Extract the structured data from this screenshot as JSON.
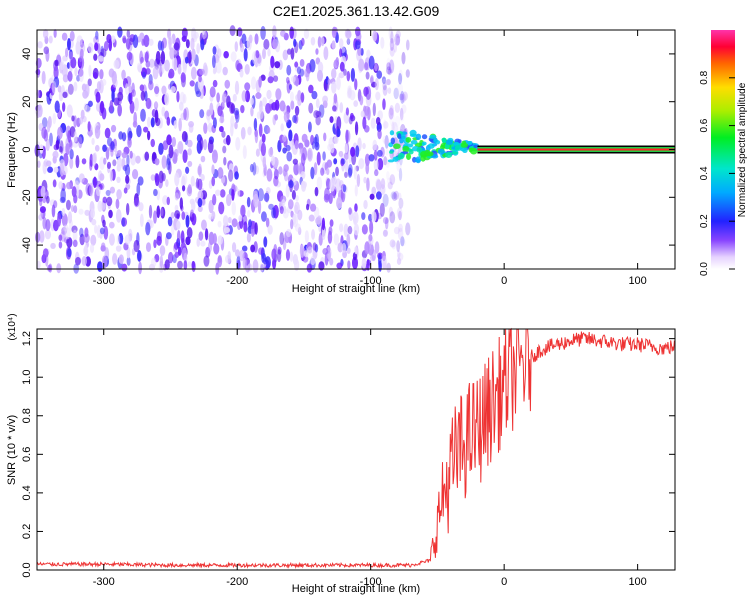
{
  "chart_data": [
    {
      "type": "heatmap",
      "title": "C2E1.2025.361.13.42.G09",
      "xlabel": "Height of straight line (km)",
      "ylabel": "Frequency (Hz)",
      "xlim": [
        -350,
        128
      ],
      "ylim": [
        -50,
        50
      ],
      "xticks": [
        -300,
        -200,
        -100,
        0,
        100
      ],
      "yticks": [
        -40,
        -20,
        0,
        20,
        40
      ],
      "colorbar": {
        "label": "Normalized spectral amplitude",
        "range": [
          0,
          1
        ],
        "ticks": [
          "0.0",
          "0.2",
          "0.4",
          "0.6",
          "0.8"
        ],
        "tick_values": [
          0.0,
          0.2,
          0.4,
          0.6,
          0.8
        ]
      },
      "regions": [
        {
          "name": "noise",
          "x_range": [
            -350,
            -72
          ],
          "f_range": [
            -50,
            50
          ],
          "amplitude": [
            0.05,
            0.25
          ]
        },
        {
          "name": "transition",
          "x_range": [
            -85,
            -20
          ],
          "f_range": [
            -3,
            6
          ],
          "amplitude": [
            0.3,
            0.6
          ]
        },
        {
          "name": "carrier",
          "x_range": [
            -20,
            128
          ],
          "f_center": 0,
          "amplitude": 0.85
        }
      ]
    },
    {
      "type": "line",
      "xlabel": "Height of straight line (km)",
      "ylabel": "SNR (10 * v/v)",
      "multiplier_label": "(x10⁴)",
      "xlim": [
        -350,
        128
      ],
      "ylim": [
        0,
        1.25
      ],
      "xticks": [
        -300,
        -200,
        -100,
        0,
        100
      ],
      "yticks": [
        0.0,
        0.2,
        0.4,
        0.6,
        0.8,
        1.0,
        1.2
      ],
      "ytick_labels": [
        "0.0",
        "0.2",
        "0.4",
        "0.6",
        "0.8",
        "1.0",
        "1.2"
      ],
      "color": "#ee3333",
      "series": [
        {
          "name": "SNR",
          "x": [
            -350,
            -300,
            -250,
            -200,
            -150,
            -100,
            -70,
            -55,
            -50,
            -45,
            -40,
            -35,
            -30,
            -25,
            -20,
            -15,
            -10,
            -5,
            0,
            5,
            10,
            15,
            20,
            25,
            30,
            40,
            50,
            60,
            70,
            80,
            90,
            100,
            110,
            120,
            128
          ],
          "values": [
            0.03,
            0.03,
            0.025,
            0.025,
            0.025,
            0.025,
            0.025,
            0.05,
            0.25,
            0.4,
            0.5,
            0.6,
            0.65,
            0.7,
            0.72,
            0.78,
            0.85,
            0.9,
            0.95,
            1.0,
            1.05,
            1.08,
            1.1,
            1.13,
            1.15,
            1.17,
            1.19,
            1.2,
            1.19,
            1.18,
            1.17,
            1.17,
            1.16,
            1.15,
            1.16
          ]
        }
      ]
    }
  ]
}
